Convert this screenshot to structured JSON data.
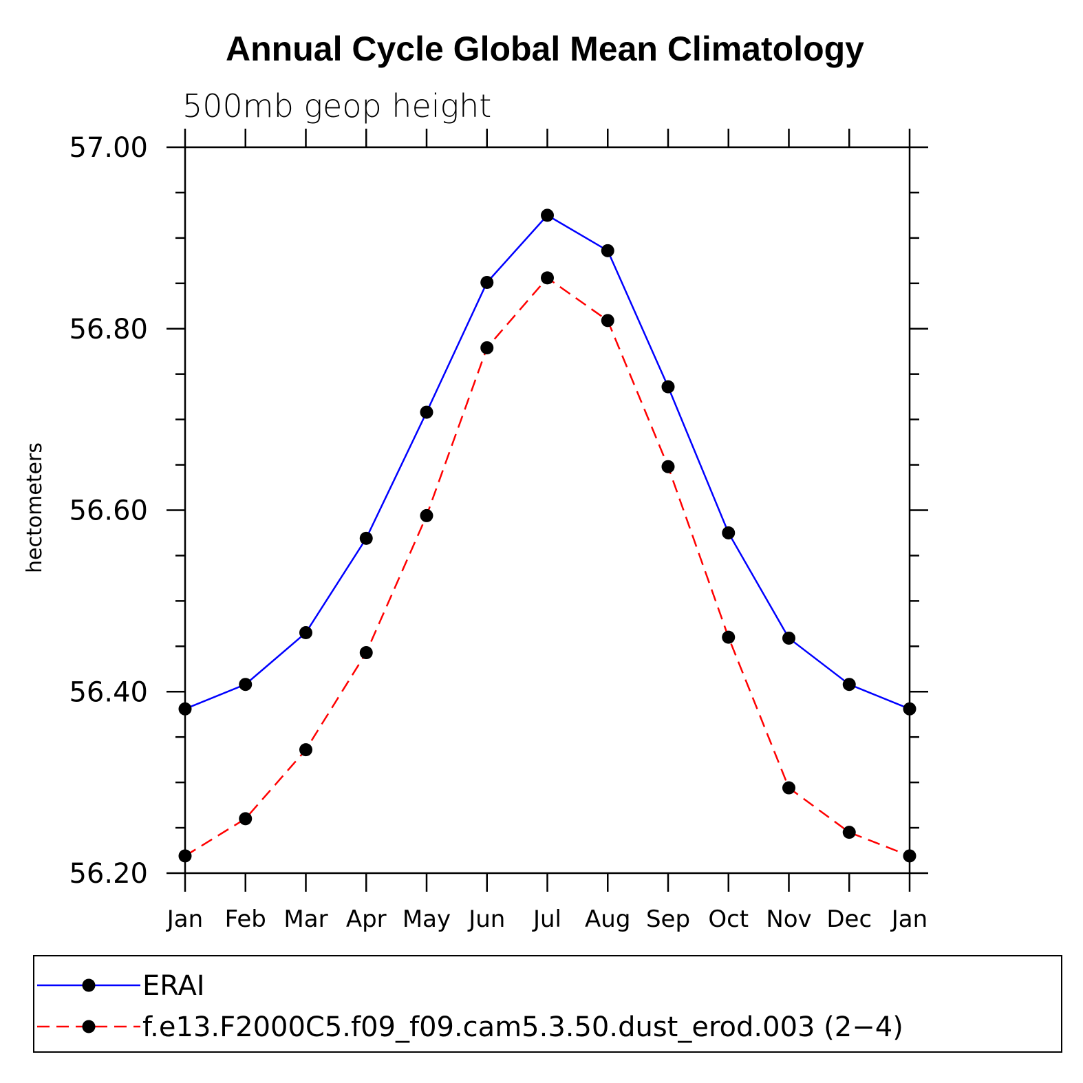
{
  "chart_data": {
    "type": "line",
    "title": "Annual Cycle Global Mean Climatology",
    "subtitle": "500mb geop height",
    "ylabel": "hectometers",
    "xlabel": "",
    "categories": [
      "Jan",
      "Feb",
      "Mar",
      "Apr",
      "May",
      "Jun",
      "Jul",
      "Aug",
      "Sep",
      "Oct",
      "Nov",
      "Dec",
      "Jan"
    ],
    "ylim": [
      56.2,
      57.0
    ],
    "yticks": [
      "56.20",
      "56.40",
      "56.60",
      "56.80",
      "57.00"
    ],
    "grid": false,
    "legend_position": "bottom",
    "series": [
      {
        "name": "ERAI",
        "color": "#0000ff",
        "style": "solid",
        "values": [
          56.381,
          56.408,
          56.465,
          56.569,
          56.708,
          56.851,
          56.925,
          56.886,
          56.736,
          56.575,
          56.459,
          56.408,
          56.381
        ]
      },
      {
        "name": "f.e13.F2000C5.f09_f09.cam5.3.50.dust_erod.003 (2−4)",
        "color": "#ff0000",
        "style": "dashed",
        "values": [
          56.219,
          56.26,
          56.336,
          56.443,
          56.594,
          56.779,
          56.856,
          56.809,
          56.648,
          56.46,
          56.294,
          56.245,
          56.219
        ]
      }
    ]
  }
}
